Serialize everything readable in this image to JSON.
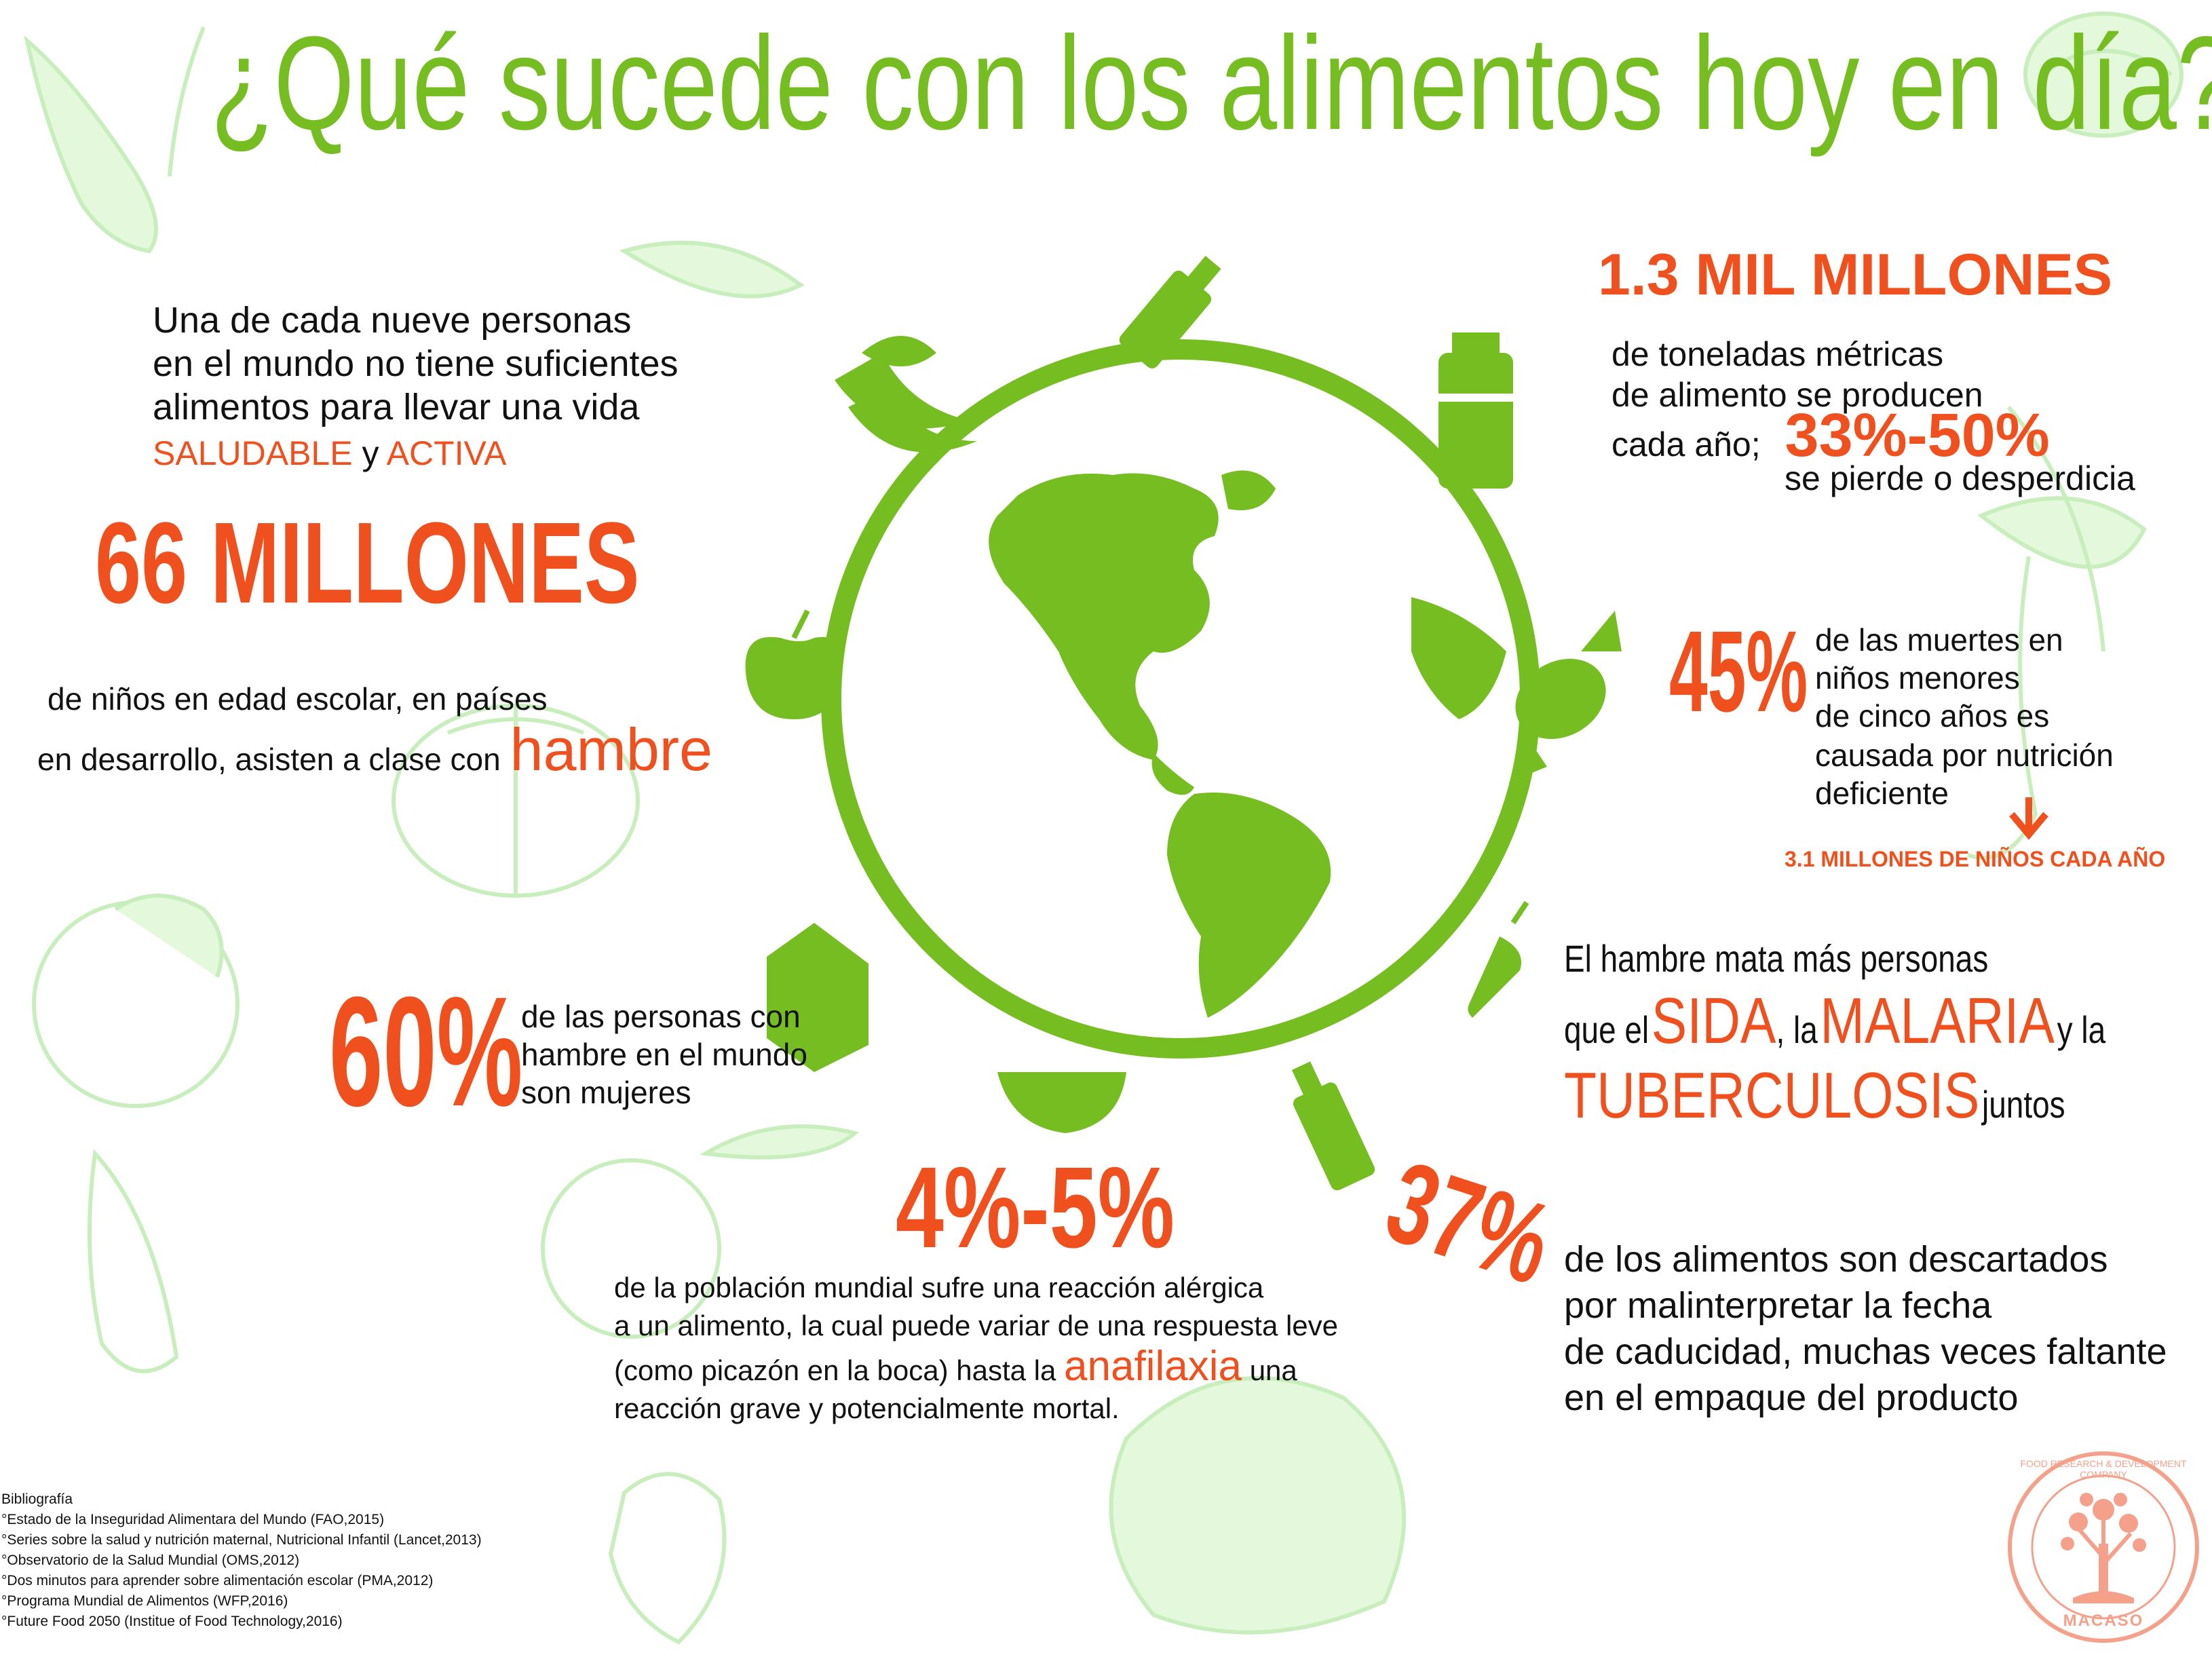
{
  "title": "¿Qué sucede con los alimentos hoy en día?",
  "blocks": {
    "hunger": {
      "line1": "Una de cada nueve personas",
      "line2": "en el mundo no tiene suficientes",
      "line3": "alimentos para llevar una vida",
      "word1": "SALUDABLE",
      "connector": "y",
      "word2": "ACTIVA"
    },
    "children": {
      "stat": "66 MILLONES",
      "line1": "de niños en edad escolar, en países",
      "line2": "en desarrollo, asisten a clase con",
      "highlight": "hambre"
    },
    "women": {
      "stat": "60%",
      "line1": "de las personas con",
      "line2": "hambre en el mundo",
      "line3": "son mujeres"
    },
    "allergy": {
      "stat": "4%-5%",
      "line1": "de la población mundial sufre una reacción alérgica",
      "line2": "a un alimento, la cual puede variar de una respuesta leve",
      "line3a": "(como picazón en la boca) hasta la",
      "highlight": "anafilaxia",
      "line3b": "una",
      "line4": "reacción grave y potencialmente mortal."
    },
    "production": {
      "stat": "1.3 MIL MILLONES",
      "line1": "de toneladas métricas",
      "line2": "de alimento se producen",
      "line3": "cada año;",
      "stat2": "33%-50%",
      "line4": "se pierde o desperdicia"
    },
    "deaths": {
      "stat": "45%",
      "line1": "de las muertes en",
      "line2": "niños menores",
      "line3": "de cinco años es",
      "line4": "causada por nutrición",
      "line5": "deficiente",
      "arrow": "↓",
      "note": "3.1 MILLONES DE NIÑOS CADA AÑO"
    },
    "diseases": {
      "line1": "El hambre mata más personas",
      "pre": "que el",
      "d1": "SIDA",
      "mid": ", la",
      "d2": "MALARIA",
      "and": "y la",
      "d3": "TUBERCULOSIS",
      "post": "juntos"
    },
    "expiry": {
      "stat": "37%",
      "line1": "de los alimentos  son descartados",
      "line2": "por malinterpretar la fecha",
      "line3": "de caducidad, muchas veces faltante",
      "line4": "en el empaque del producto"
    }
  },
  "bibliography": {
    "heading": "Bibliografía",
    "items": [
      "°Estado de la Inseguridad Alimentara del Mundo (FAO,2015)",
      "°Series sobre la salud y nutrición maternal, Nutricional Infantil (Lancet,2013)",
      "°Observatorio de la Salud Mundial (OMS,2012)",
      "°Dos minutos para aprender sobre alimentación escolar (PMA,2012)",
      "°Programa Mundial de Alimentos (WFP,2016)",
      "°Future Food 2050 (Institue of Food Technology,2016)"
    ]
  },
  "logo": {
    "ring_text": "FOOD RESEARCH & DEVELOPMENT COMPANY",
    "name": "MACASO"
  },
  "colors": {
    "title_green": "#76bd22",
    "accent_orange": "#f0501e",
    "icon_green": "#76bd22",
    "faint_green": "#d9f5cf",
    "logo_salmon": "#f4a08a"
  },
  "icons": [
    "globe-icon",
    "bottle-icon",
    "bananas-icon",
    "yogurt-icon",
    "apple-icon",
    "candy-icon",
    "carrot-icon",
    "milk-carton-icon",
    "bowl-icon",
    "sauce-bottle-icon"
  ]
}
